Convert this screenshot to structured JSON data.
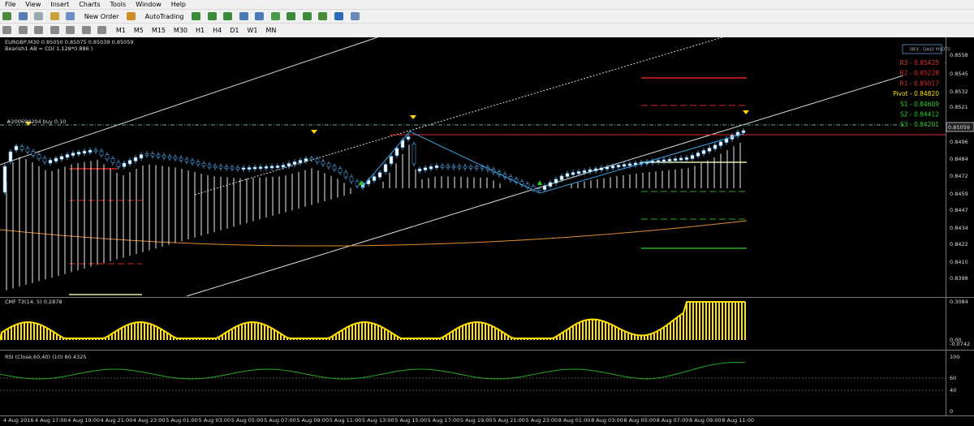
{
  "menu": {
    "items": [
      "File",
      "View",
      "Insert",
      "Charts",
      "Tools",
      "Window",
      "Help"
    ]
  },
  "toolbar": {
    "buttons": [
      "New Order",
      "AutoTrading"
    ],
    "timeframes": [
      "M1",
      "M5",
      "M15",
      "M30",
      "H1",
      "H4",
      "D1",
      "W1",
      "MN"
    ]
  },
  "chart": {
    "header": "EURGBP,M30  0.85050 0.85075 0.85039 0.85059",
    "pattern": "Bearish1 AB = CD( 1.128*0.886 )",
    "order_label": "#200699204 buy 0.10"
  },
  "pivots": {
    "title": "IBFX - DAILY PIVOTS",
    "levels": [
      "R3 - 0.85425",
      "R2 - 0.85228",
      "R1 - 0.85017",
      "Pivot - 0.84820",
      "S1 - 0.84609",
      "S2 - 0.84412",
      "S3 - 0.84201"
    ]
  },
  "price_axis": {
    "labels": [
      "0.8558",
      "0.8545",
      "0.8532",
      "0.8521",
      "0.8496",
      "0.8484",
      "0.8472",
      "0.8459",
      "0.8447",
      "0.8434",
      "0.8422",
      "0.8410",
      "0.8398"
    ],
    "current_price": "0.85059"
  },
  "cmf": {
    "title": "CMF T3(14, 5) 0.2878",
    "axis": [
      "0.3084",
      "0.00",
      "-0.0742"
    ]
  },
  "rsi": {
    "title": "RSI (Close,60,40) (10) 80.4325",
    "axis": [
      "100",
      "60",
      "40",
      "0"
    ]
  },
  "time_axis": {
    "labels": [
      "4 Aug 2016",
      "4 Aug 17:00",
      "4 Aug 19:00",
      "4 Aug 21:00",
      "4 Aug 23:00",
      "5 Aug 01:00",
      "5 Aug 03:00",
      "5 Aug 05:00",
      "5 Aug 07:00",
      "5 Aug 09:00",
      "5 Aug 11:00",
      "5 Aug 13:00",
      "5 Aug 15:00",
      "5 Aug 17:00",
      "5 Aug 19:00",
      "5 Aug 21:00",
      "5 Aug 23:00",
      "8 Aug 01:00",
      "8 Aug 03:00",
      "8 Aug 05:00",
      "8 Aug 07:00",
      "8 Aug 09:00",
      "8 Aug 11:00"
    ]
  }
}
